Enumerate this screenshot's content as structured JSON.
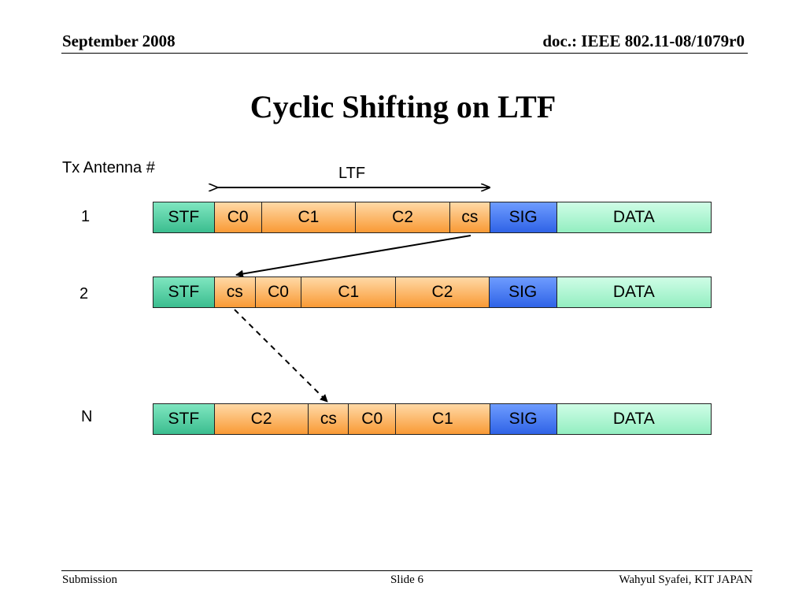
{
  "header": {
    "date": "September 2008",
    "doc": "doc.: IEEE 802.11-08/1079r0"
  },
  "title": "Cyclic Shifting on LTF",
  "tx_label": "Tx Antenna #",
  "ltf_label": "LTF",
  "rows": [
    {
      "label": "1",
      "segments": [
        "STF",
        "C0",
        "C1",
        "C2",
        "cs",
        "SIG",
        "DATA"
      ]
    },
    {
      "label": "2",
      "segments": [
        "STF",
        "cs",
        "C0",
        "C1",
        "C2",
        "SIG",
        "DATA"
      ]
    },
    {
      "label": "N",
      "segments": [
        "STF",
        "C2",
        "cs",
        "C0",
        "C1",
        "SIG",
        "DATA"
      ]
    }
  ],
  "colors": {
    "stf": "#3bbd8f",
    "ltf": "#f99a35",
    "sig": "#2f63e6",
    "data": "#93eec1"
  },
  "footer": {
    "left": "Submission",
    "center": "Slide 6",
    "right": "Wahyul Syafei, KIT JAPAN"
  }
}
